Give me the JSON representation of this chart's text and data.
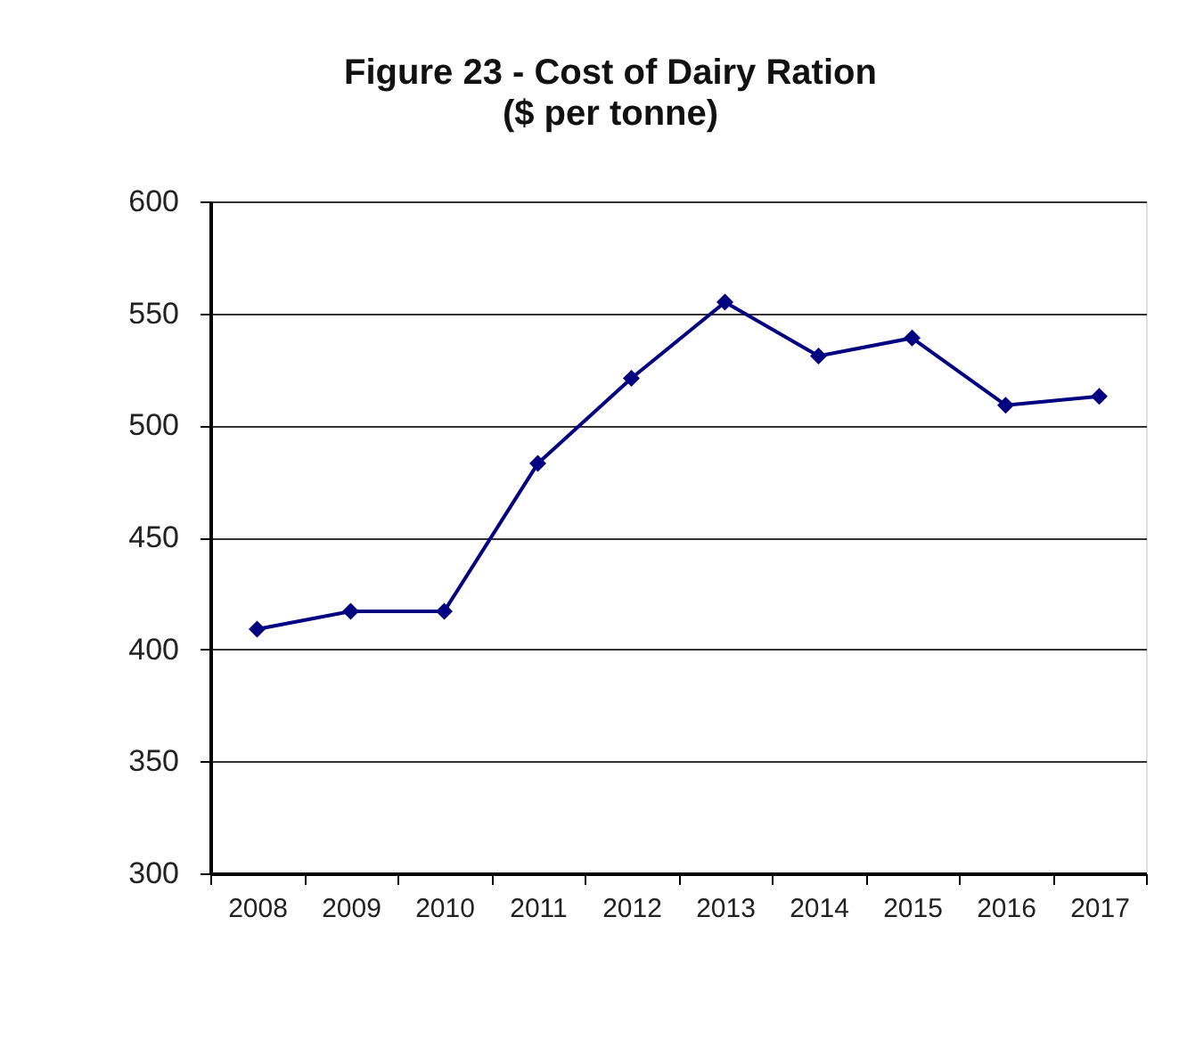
{
  "chart_data": {
    "type": "line",
    "title": "Figure 23 - Cost of Dairy Ration",
    "subtitle": "($ per tonne)",
    "categories": [
      "2008",
      "2009",
      "2010",
      "2011",
      "2012",
      "2013",
      "2014",
      "2015",
      "2016",
      "2017"
    ],
    "series": [
      {
        "color": "#000080",
        "values": [
          409,
          417,
          417,
          483,
          521,
          555,
          531,
          539,
          509,
          513
        ]
      }
    ],
    "ylim": [
      300,
      600
    ],
    "yticks": [
      300,
      350,
      400,
      450,
      500,
      550,
      600
    ],
    "grid": "y",
    "marker": "diamond",
    "line_style": "solid"
  }
}
